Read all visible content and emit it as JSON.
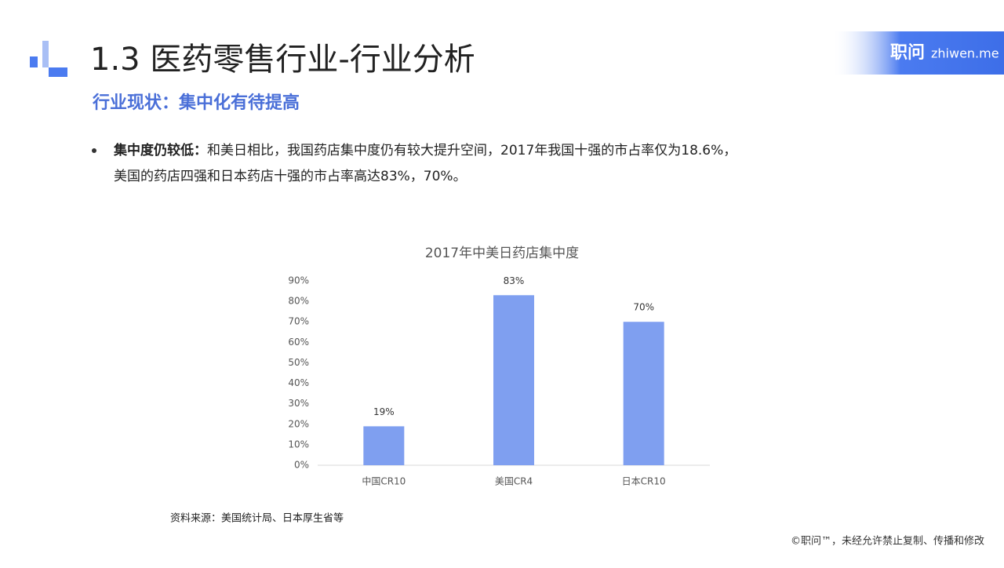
{
  "header": {
    "title": "1.3 医药零售行业-行业分析",
    "subtitle": "行业现状：集中化有待提高",
    "brand": "职问",
    "brand_url": "zhiwen.me"
  },
  "bullet": {
    "lead": "集中度仍较低：",
    "line1": "和美日相比，我国药店集中度仍有较大提升空间，2017年我国十强的市占率仅为18.6%，",
    "line2": "美国的药店四强和日本药店十强的市占率高达83%，70%。"
  },
  "chart_data": {
    "type": "bar",
    "title": "2017年中美日药店集中度",
    "categories": [
      "中国CR10",
      "美国CR4",
      "日本CR10"
    ],
    "values": [
      19,
      83,
      70
    ],
    "value_labels": [
      "19%",
      "83%",
      "70%"
    ],
    "color": "#7f9ff0",
    "ylim": [
      0,
      90
    ],
    "yticks": [
      {
        "value": 0,
        "label": "0%"
      },
      {
        "value": 10,
        "label": "10%"
      },
      {
        "value": 20,
        "label": "20%"
      },
      {
        "value": 30,
        "label": "30%"
      },
      {
        "value": 40,
        "label": "40%"
      },
      {
        "value": 50,
        "label": "50%"
      },
      {
        "value": 60,
        "label": "60%"
      },
      {
        "value": 70,
        "label": "70%"
      },
      {
        "value": 80,
        "label": "80%"
      },
      {
        "value": 90,
        "label": "90%"
      }
    ],
    "grid": false
  },
  "source": "资料来源：美国统计局、日本厚生省等",
  "footer": "©职问™，未经允许禁止复制、传播和修改"
}
